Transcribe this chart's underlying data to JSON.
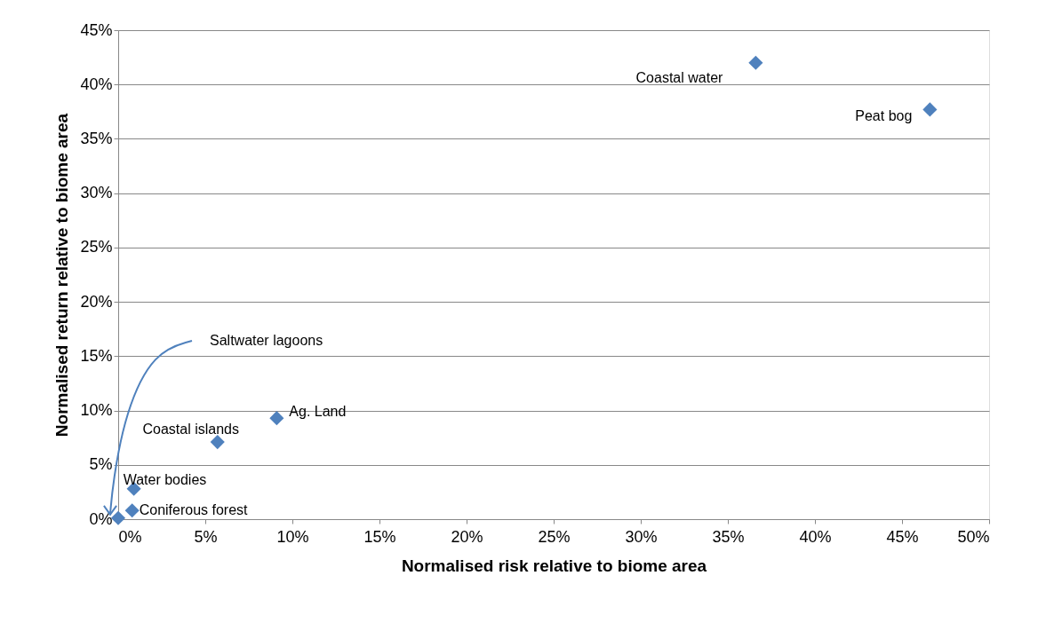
{
  "chart_data": {
    "type": "scatter",
    "xlabel": "Normalised risk relative to biome area",
    "ylabel": "Normalised return relative to biome area",
    "series": [
      {
        "color": "#4f81bd",
        "x": [
          0,
          0.8,
          0.9,
          5.7,
          9.1,
          36.6,
          46.6
        ],
        "values": [
          0.1,
          0.8,
          2.8,
          7.1,
          9.3,
          42.0,
          37.7
        ]
      }
    ],
    "annotations": [
      "Saltwater lagoons",
      {
        "text": "Coniferous forest",
        "x": 0.8,
        "y": 0.8
      },
      {
        "text": "Water bodies",
        "x": 0.9,
        "y": 2.8
      },
      {
        "text": "Coastal islands",
        "x": 5.7,
        "y": 7.1
      },
      {
        "text": "Ag. Land",
        "x": 9.1,
        "y": 9.3
      },
      {
        "text": "Coastal water",
        "x": 36.6,
        "y": 42.0
      },
      {
        "text": "Peat bog",
        "x": 46.6,
        "y": 37.7
      }
    ],
    "xlim": [
      0,
      50
    ],
    "xticks": [
      {
        "value": 0,
        "label": "0%"
      },
      {
        "value": 5,
        "label": "5%"
      },
      {
        "value": 10,
        "label": "10%"
      },
      {
        "value": 15,
        "label": "15%"
      },
      {
        "value": 20,
        "label": "20%"
      },
      {
        "value": 25,
        "label": "25%"
      },
      {
        "value": 30,
        "label": "30%"
      },
      {
        "value": 35,
        "label": "35%"
      },
      {
        "value": 40,
        "label": "40%"
      },
      {
        "value": 45,
        "label": "45%"
      },
      {
        "value": 50,
        "label": "50%"
      }
    ],
    "ylim": [
      0,
      45
    ],
    "yticks": [
      {
        "value": 0,
        "label": "0%"
      },
      {
        "value": 5,
        "label": "5%"
      },
      {
        "value": 10,
        "label": "10%"
      },
      {
        "value": 15,
        "label": "15%"
      },
      {
        "value": 20,
        "label": "20%"
      },
      {
        "value": 25,
        "label": "25%"
      },
      {
        "value": 30,
        "label": "30%"
      },
      {
        "value": 35,
        "label": "35%"
      },
      {
        "value": 40,
        "label": "40%"
      },
      {
        "value": 45,
        "label": "45%"
      }
    ],
    "grid": "y",
    "marker": "diamond"
  }
}
